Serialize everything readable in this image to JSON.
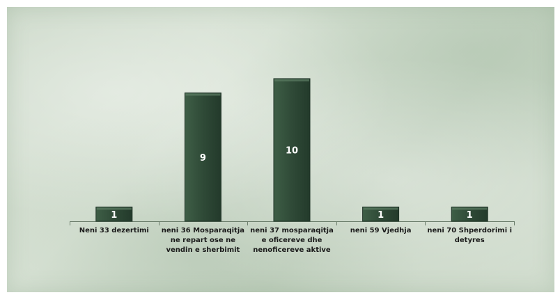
{
  "chart_data": {
    "type": "bar",
    "categories": [
      [
        "Neni 33 dezertimi"
      ],
      [
        "neni 36 Mosparaqitja",
        "ne repart ose ne",
        "vendin e sherbimit"
      ],
      [
        "neni 37 mosparaqitja",
        "e oficereve dhe",
        "nenoficereve aktive"
      ],
      [
        "neni 59 Vjedhja"
      ],
      [
        "neni 70 Shperdorimi i",
        "detyres"
      ]
    ],
    "values": [
      1,
      9,
      10,
      1,
      1
    ],
    "data_labels": [
      "1",
      "9",
      "10",
      "1",
      "1"
    ],
    "title": "",
    "xlabel": "",
    "ylabel": "",
    "ylim": [
      0,
      10
    ],
    "grid": false,
    "legend": "none",
    "bar_color": "#2f4a37",
    "bar_edge_color": "#1e3226"
  }
}
